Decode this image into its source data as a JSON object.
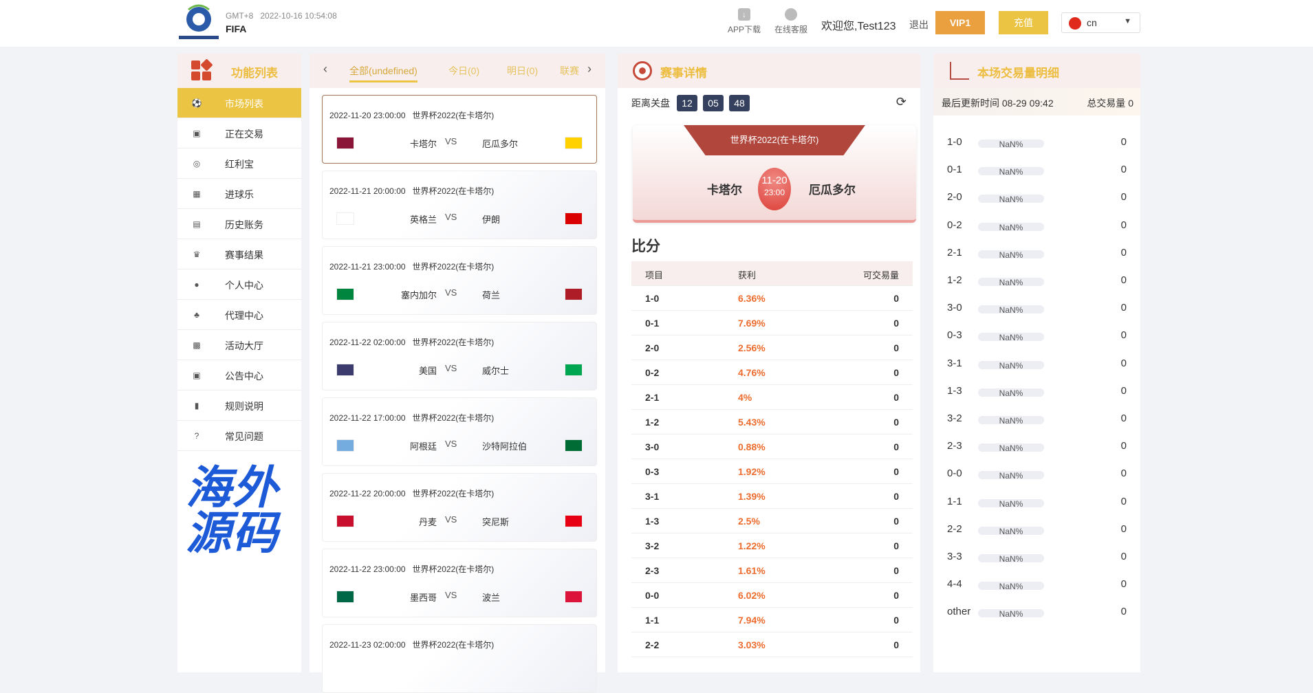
{
  "header": {
    "timezone": "GMT+8",
    "datetime": "2022-10-16 10:54:08",
    "brand": "FIFA",
    "app_download": "APP下载",
    "support": "在线客服",
    "welcome": "欢迎您,Test123",
    "logout": "退出",
    "vip": "VIP1",
    "recharge": "充值",
    "language": "cn",
    "colors": {
      "vip": "#eba03f",
      "recharge": "#ecc444"
    }
  },
  "sidebar": {
    "title": "功能列表",
    "items": [
      {
        "label": "市场列表",
        "icon": "soccer-ball-icon"
      },
      {
        "label": "正在交易",
        "icon": "wallet-icon"
      },
      {
        "label": "红利宝",
        "icon": "coins-icon"
      },
      {
        "label": "进球乐",
        "icon": "goal-icon"
      },
      {
        "label": "历史账务",
        "icon": "history-icon"
      },
      {
        "label": "赛事结果",
        "icon": "trophy-icon"
      },
      {
        "label": "个人中心",
        "icon": "user-icon"
      },
      {
        "label": "代理中心",
        "icon": "org-chart-icon"
      },
      {
        "label": "活动大厅",
        "icon": "gift-icon"
      },
      {
        "label": "公告中心",
        "icon": "announcement-icon"
      },
      {
        "label": "规则说明",
        "icon": "document-icon"
      },
      {
        "label": "常见问题",
        "icon": "question-icon"
      }
    ]
  },
  "match_list": {
    "tabs": [
      "全部(undefined)",
      "今日(0)",
      "明日(0)",
      "联赛"
    ],
    "matches": [
      {
        "date": "2022-11-20 23:00:00",
        "league": "世界杯2022(在卡塔尔)",
        "home": "卡塔尔",
        "away": "厄瓜多尔",
        "vs": "VS"
      },
      {
        "date": "2022-11-21 20:00:00",
        "league": "世界杯2022(在卡塔尔)",
        "home": "英格兰",
        "away": "伊朗",
        "vs": "VS"
      },
      {
        "date": "2022-11-21 23:00:00",
        "league": "世界杯2022(在卡塔尔)",
        "home": "塞内加尔",
        "away": "荷兰",
        "vs": "VS"
      },
      {
        "date": "2022-11-22 02:00:00",
        "league": "世界杯2022(在卡塔尔)",
        "home": "美国",
        "away": "威尔士",
        "vs": "VS"
      },
      {
        "date": "2022-11-22 17:00:00",
        "league": "世界杯2022(在卡塔尔)",
        "home": "阿根廷",
        "away": "沙特阿拉伯",
        "vs": "VS"
      },
      {
        "date": "2022-11-22 20:00:00",
        "league": "世界杯2022(在卡塔尔)",
        "home": "丹麦",
        "away": "突尼斯",
        "vs": "VS"
      },
      {
        "date": "2022-11-22 23:00:00",
        "league": "世界杯2022(在卡塔尔)",
        "home": "墨西哥",
        "away": "波兰",
        "vs": "VS"
      },
      {
        "date": "2022-11-23 02:00:00",
        "league": "世界杯2022(在卡塔尔)",
        "home": "",
        "away": "",
        "vs": ""
      }
    ]
  },
  "detail": {
    "title": "赛事详情",
    "countdown_label": "距离关盘",
    "countdown": [
      "12",
      "05",
      "48"
    ],
    "league": "世界杯2022(在卡塔尔)",
    "home": "卡塔尔",
    "away": "厄瓜多尔",
    "date": "11-20",
    "time": "23:00",
    "score_title": "比分",
    "columns": [
      "项目",
      "获利",
      "可交易量"
    ],
    "rows": [
      [
        "1-0",
        "6.36%",
        "0"
      ],
      [
        "0-1",
        "7.69%",
        "0"
      ],
      [
        "2-0",
        "2.56%",
        "0"
      ],
      [
        "0-2",
        "4.76%",
        "0"
      ],
      [
        "2-1",
        "4%",
        "0"
      ],
      [
        "1-2",
        "5.43%",
        "0"
      ],
      [
        "3-0",
        "0.88%",
        "0"
      ],
      [
        "0-3",
        "1.92%",
        "0"
      ],
      [
        "3-1",
        "1.39%",
        "0"
      ],
      [
        "1-3",
        "2.5%",
        "0"
      ],
      [
        "3-2",
        "1.22%",
        "0"
      ],
      [
        "2-3",
        "1.61%",
        "0"
      ],
      [
        "0-0",
        "6.02%",
        "0"
      ],
      [
        "1-1",
        "7.94%",
        "0"
      ],
      [
        "2-2",
        "3.03%",
        "0"
      ]
    ]
  },
  "volume": {
    "title": "本场交易量明细",
    "last_update": "最后更新时间 08-29 09:42",
    "total": "总交易量 0",
    "rows": [
      [
        "1-0",
        "NaN%",
        "0"
      ],
      [
        "0-1",
        "NaN%",
        "0"
      ],
      [
        "2-0",
        "NaN%",
        "0"
      ],
      [
        "0-2",
        "NaN%",
        "0"
      ],
      [
        "2-1",
        "NaN%",
        "0"
      ],
      [
        "1-2",
        "NaN%",
        "0"
      ],
      [
        "3-0",
        "NaN%",
        "0"
      ],
      [
        "0-3",
        "NaN%",
        "0"
      ],
      [
        "3-1",
        "NaN%",
        "0"
      ],
      [
        "1-3",
        "NaN%",
        "0"
      ],
      [
        "3-2",
        "NaN%",
        "0"
      ],
      [
        "2-3",
        "NaN%",
        "0"
      ],
      [
        "0-0",
        "NaN%",
        "0"
      ],
      [
        "1-1",
        "NaN%",
        "0"
      ],
      [
        "2-2",
        "NaN%",
        "0"
      ],
      [
        "3-3",
        "NaN%",
        "0"
      ],
      [
        "4-4",
        "NaN%",
        "0"
      ],
      [
        "other",
        "NaN%",
        "0"
      ]
    ]
  },
  "watermark": "海外源码"
}
